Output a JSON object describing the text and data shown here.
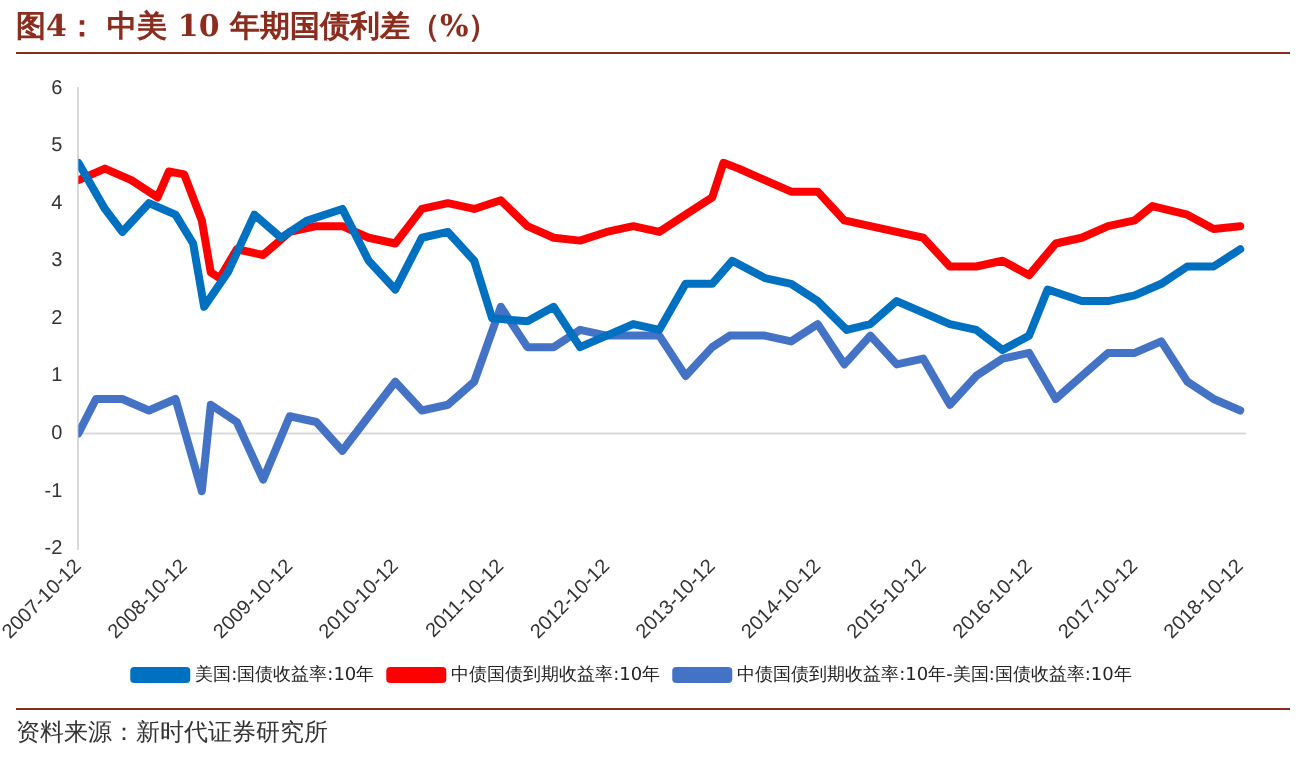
{
  "chart_data": {
    "type": "line",
    "title": "图4：  中美 10 年期国债利差（%）",
    "annotations": [
      "资料来源：新时代证券研究所"
    ],
    "xlim": [
      "2007-10-12",
      "2018-11-01"
    ],
    "xticks": [
      "2007-10-12",
      "2008-10-12",
      "2009-10-12",
      "2010-10-12",
      "2011-10-12",
      "2012-10-12",
      "2013-10-12",
      "2014-10-12",
      "2015-10-12",
      "2016-10-12",
      "2017-10-12",
      "2018-10-12"
    ],
    "ylim": [
      -2,
      6
    ],
    "yticks": [
      -2,
      -1,
      0,
      1,
      2,
      3,
      4,
      5,
      6
    ],
    "grid": false,
    "ref_lines": [
      {
        "axis": "y",
        "value": 0,
        "color": "#d9d9d9"
      }
    ],
    "legend": "bottom",
    "marker": "none",
    "line_style": "solid",
    "series": [
      {
        "name": "美国:国债收益率:10年",
        "color": "#0070c0",
        "x": [
          "2007-10-12",
          "2008-01-12",
          "2008-03-12",
          "2008-06-12",
          "2008-09-12",
          "2008-11-12",
          "2008-12-20",
          "2009-03-12",
          "2009-06-12",
          "2009-09-12",
          "2009-12-12",
          "2010-04-12",
          "2010-07-12",
          "2010-10-12",
          "2011-01-12",
          "2011-04-12",
          "2011-07-12",
          "2011-09-12",
          "2012-01-12",
          "2012-04-12",
          "2012-07-12",
          "2012-10-12",
          "2013-01-12",
          "2013-04-12",
          "2013-07-12",
          "2013-10-12",
          "2013-12-20",
          "2014-04-12",
          "2014-07-12",
          "2014-10-12",
          "2015-01-20",
          "2015-04-12",
          "2015-07-12",
          "2015-10-12",
          "2016-01-12",
          "2016-04-12",
          "2016-07-12",
          "2016-10-12",
          "2016-12-15",
          "2017-04-12",
          "2017-07-12",
          "2017-10-12",
          "2018-01-12",
          "2018-04-12",
          "2018-07-12",
          "2018-10-12"
        ],
        "values": [
          4.7,
          3.9,
          3.5,
          4.0,
          3.8,
          3.3,
          2.2,
          2.8,
          3.8,
          3.4,
          3.7,
          3.9,
          3.0,
          2.5,
          3.4,
          3.5,
          3.0,
          2.0,
          1.95,
          2.2,
          1.5,
          1.7,
          1.9,
          1.8,
          2.6,
          2.6,
          3.0,
          2.7,
          2.6,
          2.3,
          1.8,
          1.9,
          2.3,
          2.1,
          1.9,
          1.8,
          1.45,
          1.7,
          2.5,
          2.3,
          2.3,
          2.4,
          2.6,
          2.9,
          2.9,
          3.2
        ]
      },
      {
        "name": "中债国债到期收益率:10年",
        "color": "#ff0000",
        "x": [
          "2007-10-12",
          "2008-01-12",
          "2008-04-12",
          "2008-07-12",
          "2008-08-20",
          "2008-10-12",
          "2008-12-12",
          "2009-01-12",
          "2009-02-12",
          "2009-04-12",
          "2009-07-12",
          "2009-10-12",
          "2010-01-12",
          "2010-04-12",
          "2010-07-12",
          "2010-10-12",
          "2011-01-12",
          "2011-04-12",
          "2011-07-12",
          "2011-10-12",
          "2012-01-12",
          "2012-04-12",
          "2012-07-12",
          "2012-10-12",
          "2013-01-12",
          "2013-04-12",
          "2013-07-12",
          "2013-10-12",
          "2013-11-20",
          "2014-01-12",
          "2014-04-12",
          "2014-07-12",
          "2014-10-12",
          "2015-01-12",
          "2015-04-12",
          "2015-07-12",
          "2015-10-12",
          "2016-01-12",
          "2016-04-12",
          "2016-07-12",
          "2016-10-12",
          "2017-01-12",
          "2017-04-12",
          "2017-07-12",
          "2017-10-12",
          "2017-12-12",
          "2018-04-12",
          "2018-07-12",
          "2018-10-12"
        ],
        "values": [
          4.4,
          4.6,
          4.4,
          4.1,
          4.55,
          4.5,
          3.7,
          2.8,
          2.7,
          3.2,
          3.1,
          3.5,
          3.6,
          3.6,
          3.4,
          3.3,
          3.9,
          4.0,
          3.9,
          4.05,
          3.6,
          3.4,
          3.35,
          3.5,
          3.6,
          3.5,
          3.8,
          4.1,
          4.7,
          4.6,
          4.4,
          4.2,
          4.2,
          3.7,
          3.6,
          3.5,
          3.4,
          2.9,
          2.9,
          3.0,
          2.75,
          3.3,
          3.4,
          3.6,
          3.7,
          3.95,
          3.8,
          3.55,
          3.6
        ]
      },
      {
        "name": "中债国债到期收益率:10年-美国:国债收益率:10年",
        "color": "#4472c4",
        "x": [
          "2007-10-12",
          "2007-12-12",
          "2008-03-12",
          "2008-06-12",
          "2008-09-12",
          "2008-12-12",
          "2009-01-12",
          "2009-04-12",
          "2009-07-12",
          "2009-10-12",
          "2010-01-12",
          "2010-04-12",
          "2010-07-12",
          "2010-10-12",
          "2011-01-12",
          "2011-04-12",
          "2011-07-12",
          "2011-10-12",
          "2012-01-12",
          "2012-04-12",
          "2012-07-12",
          "2012-10-12",
          "2013-01-12",
          "2013-04-12",
          "2013-07-12",
          "2013-10-12",
          "2013-12-12",
          "2014-04-12",
          "2014-07-12",
          "2014-10-12",
          "2015-01-12",
          "2015-04-12",
          "2015-07-12",
          "2015-10-12",
          "2016-01-12",
          "2016-04-12",
          "2016-07-12",
          "2016-10-12",
          "2017-01-12",
          "2017-04-12",
          "2017-07-12",
          "2017-10-12",
          "2018-01-12",
          "2018-04-12",
          "2018-07-12",
          "2018-10-12"
        ],
        "values": [
          0,
          0.6,
          0.6,
          0.4,
          0.6,
          -1.0,
          0.5,
          0.2,
          -0.8,
          0.3,
          0.2,
          -0.3,
          0.3,
          0.9,
          0.4,
          0.5,
          0.9,
          2.2,
          1.5,
          1.5,
          1.8,
          1.7,
          1.7,
          1.7,
          1.0,
          1.5,
          1.7,
          1.7,
          1.6,
          1.9,
          1.2,
          1.7,
          1.2,
          1.3,
          0.5,
          1.0,
          1.3,
          1.4,
          0.6,
          1.0,
          1.4,
          1.4,
          1.6,
          0.9,
          0.6,
          0.4
        ]
      }
    ]
  }
}
